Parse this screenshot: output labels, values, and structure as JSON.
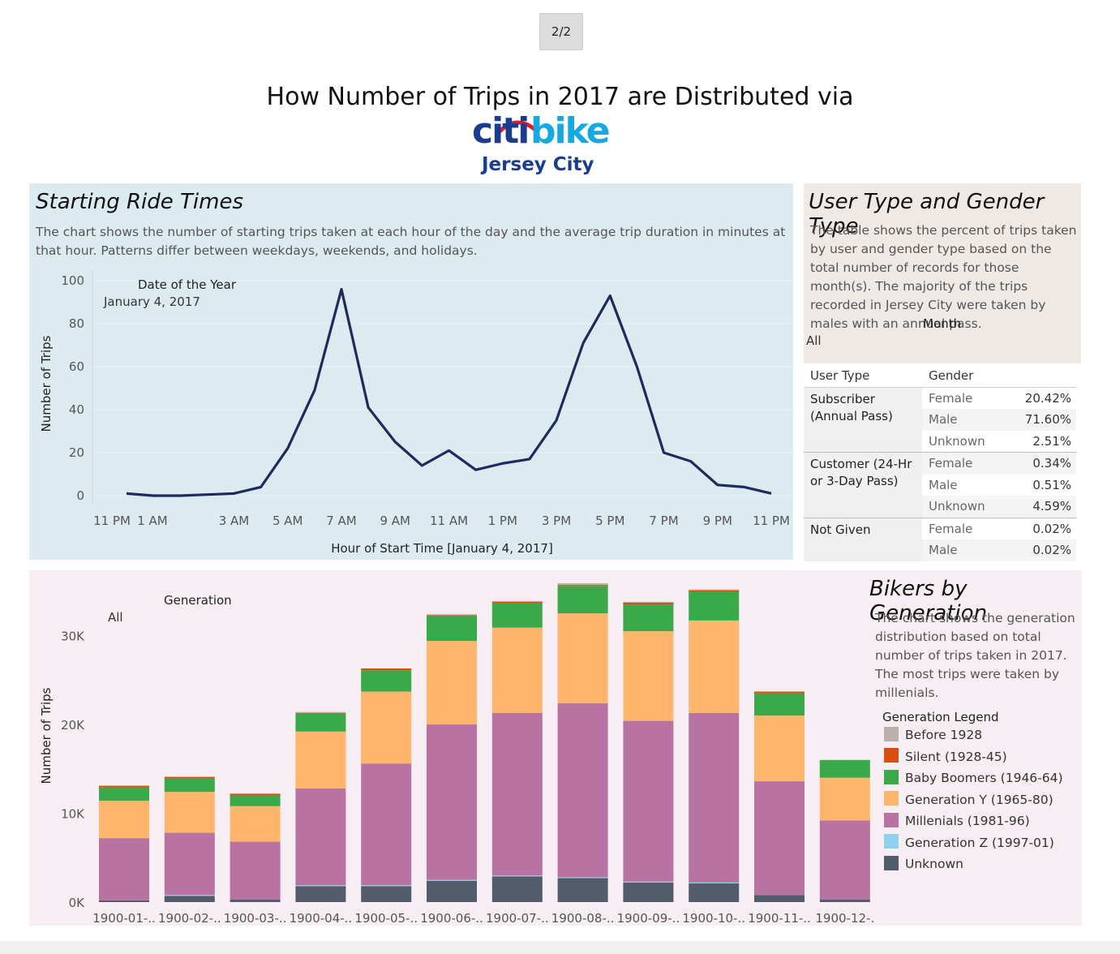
{
  "pager": "2/2",
  "title": "How Number of Trips in 2017 are Distributed via",
  "logo": {
    "citi": "citi",
    "bike": "bike",
    "city": "Jersey City"
  },
  "colors": {
    "line": "#1f2a5e",
    "before1928": "#bab0ac",
    "silent": "#d94d0f",
    "boomers": "#3aa94a",
    "genY": "#ffb56b",
    "millenials": "#b873a3",
    "genZ": "#8fd0ec",
    "unknown": "#535c6a"
  },
  "ride_times": {
    "heading": "Starting Ride Times",
    "description": "The chart shows the number of starting trips taken at each hour of the day and the average trip duration in minutes at that hour. Patterns differ between weekdays, weekends, and holidays.",
    "filter_label": "Date of the Year",
    "filter_value": "January 4, 2017"
  },
  "user_type": {
    "heading": "User Type and Gender Type",
    "description": "The table shows the percent of trips taken by user and gender type based on the total number of records for those month(s). The majority of the trips recorded in Jersey City were taken by males with an annual pass.",
    "filter_label": "Month",
    "filter_value": "All",
    "col_user": "User Type",
    "col_gender": "Gender",
    "groups": [
      {
        "name": "Subscriber (Annual Pass)",
        "rows": [
          {
            "gender": "Female",
            "pct": "20.42%"
          },
          {
            "gender": "Male",
            "pct": "71.60%"
          },
          {
            "gender": "Unknown",
            "pct": "2.51%"
          }
        ]
      },
      {
        "name": "Customer (24-Hr or 3-Day Pass)",
        "rows": [
          {
            "gender": "Female",
            "pct": "0.34%"
          },
          {
            "gender": "Male",
            "pct": "0.51%"
          },
          {
            "gender": "Unknown",
            "pct": "4.59%"
          }
        ]
      },
      {
        "name": "Not Given",
        "rows": [
          {
            "gender": "Female",
            "pct": "0.02%"
          },
          {
            "gender": "Male",
            "pct": "0.02%"
          }
        ]
      }
    ]
  },
  "generation": {
    "heading": "Bikers by Generation",
    "description": "The chart shows the generation distribution based on total number of trips taken in 2017. The most trips were taken by millenials.",
    "filter_label": "Generation",
    "filter_value": "All",
    "legend_title": "Generation Legend",
    "legend": [
      "Before 1928",
      "Silent (1928-45)",
      "Baby Boomers (1946-64)",
      "Generation Y (1965-80)",
      "Millenials (1981-96)",
      "Generation Z (1997-01)",
      "Unknown"
    ]
  },
  "chart_data": [
    {
      "type": "line",
      "x": [
        "11 PM",
        "12 AM",
        "1 AM",
        "2 AM",
        "3 AM",
        "4 AM",
        "5 AM",
        "6 AM",
        "7 AM",
        "8 AM",
        "9 AM",
        "10 AM",
        "11 AM",
        "12 PM",
        "1 PM",
        "2 PM",
        "3 PM",
        "4 PM",
        "5 PM",
        "6 PM",
        "7 PM",
        "8 PM",
        "9 PM",
        "10 PM",
        "11 PM"
      ],
      "x_ticks": [
        "11 PM",
        "1 AM",
        "3 AM",
        "5 AM",
        "7 AM",
        "9 AM",
        "11 AM",
        "1 PM",
        "3 PM",
        "5 PM",
        "7 PM",
        "9 PM",
        "11 PM"
      ],
      "series": [
        {
          "values": [
            1,
            0,
            0,
            0.5,
            1,
            4,
            22,
            49,
            96,
            41,
            25,
            14,
            21,
            12,
            15,
            17,
            35,
            71,
            93,
            60,
            20,
            16,
            5,
            4,
            1
          ]
        }
      ],
      "xlabel": "Hour of Start Time [January 4, 2017]",
      "ylabel": "Number of Trips",
      "ylim": [
        0,
        100
      ],
      "y_ticks": [
        "0",
        "20",
        "40",
        "60",
        "80",
        "100"
      ]
    },
    {
      "type": "bar",
      "stacked": true,
      "categories": [
        "1900-01-..",
        "1900-02-..",
        "1900-03-..",
        "1900-04-..",
        "1900-05-..",
        "1900-06-..",
        "1900-07-..",
        "1900-08-..",
        "1900-09-..",
        "1900-10-..",
        "1900-11-..",
        "1900-12-."
      ],
      "series": [
        {
          "name": "Unknown",
          "values": [
            200,
            700,
            300,
            1800,
            1800,
            2400,
            2900,
            2700,
            2200,
            2100,
            800,
            300
          ]
        },
        {
          "name": "Generation Z (1997-01)",
          "values": [
            0,
            100,
            0,
            100,
            100,
            100,
            100,
            100,
            100,
            100,
            0,
            0
          ]
        },
        {
          "name": "Millenials (1981-96)",
          "values": [
            7000,
            7000,
            6500,
            10900,
            13700,
            17500,
            18300,
            19600,
            18100,
            19100,
            12800,
            8900
          ]
        },
        {
          "name": "Generation Y (1965-80)",
          "values": [
            4200,
            4600,
            4000,
            6400,
            8100,
            9400,
            9600,
            10100,
            10100,
            10400,
            7400,
            4800
          ]
        },
        {
          "name": "Baby Boomers (1946-64)",
          "values": [
            1500,
            1500,
            1200,
            2000,
            2400,
            2800,
            2800,
            3100,
            3000,
            3200,
            2500,
            2000
          ]
        },
        {
          "name": "Silent (1928-45)",
          "values": [
            200,
            200,
            200,
            100,
            200,
            100,
            100,
            100,
            200,
            200,
            200,
            0
          ]
        },
        {
          "name": "Before 1928",
          "values": [
            0,
            0,
            0,
            100,
            0,
            100,
            100,
            200,
            100,
            100,
            0,
            0
          ]
        }
      ],
      "ylabel": "Number of Trips",
      "ylim": [
        0,
        36000
      ],
      "y_ticks": [
        "0K",
        "10K",
        "20K",
        "30K"
      ]
    }
  ]
}
